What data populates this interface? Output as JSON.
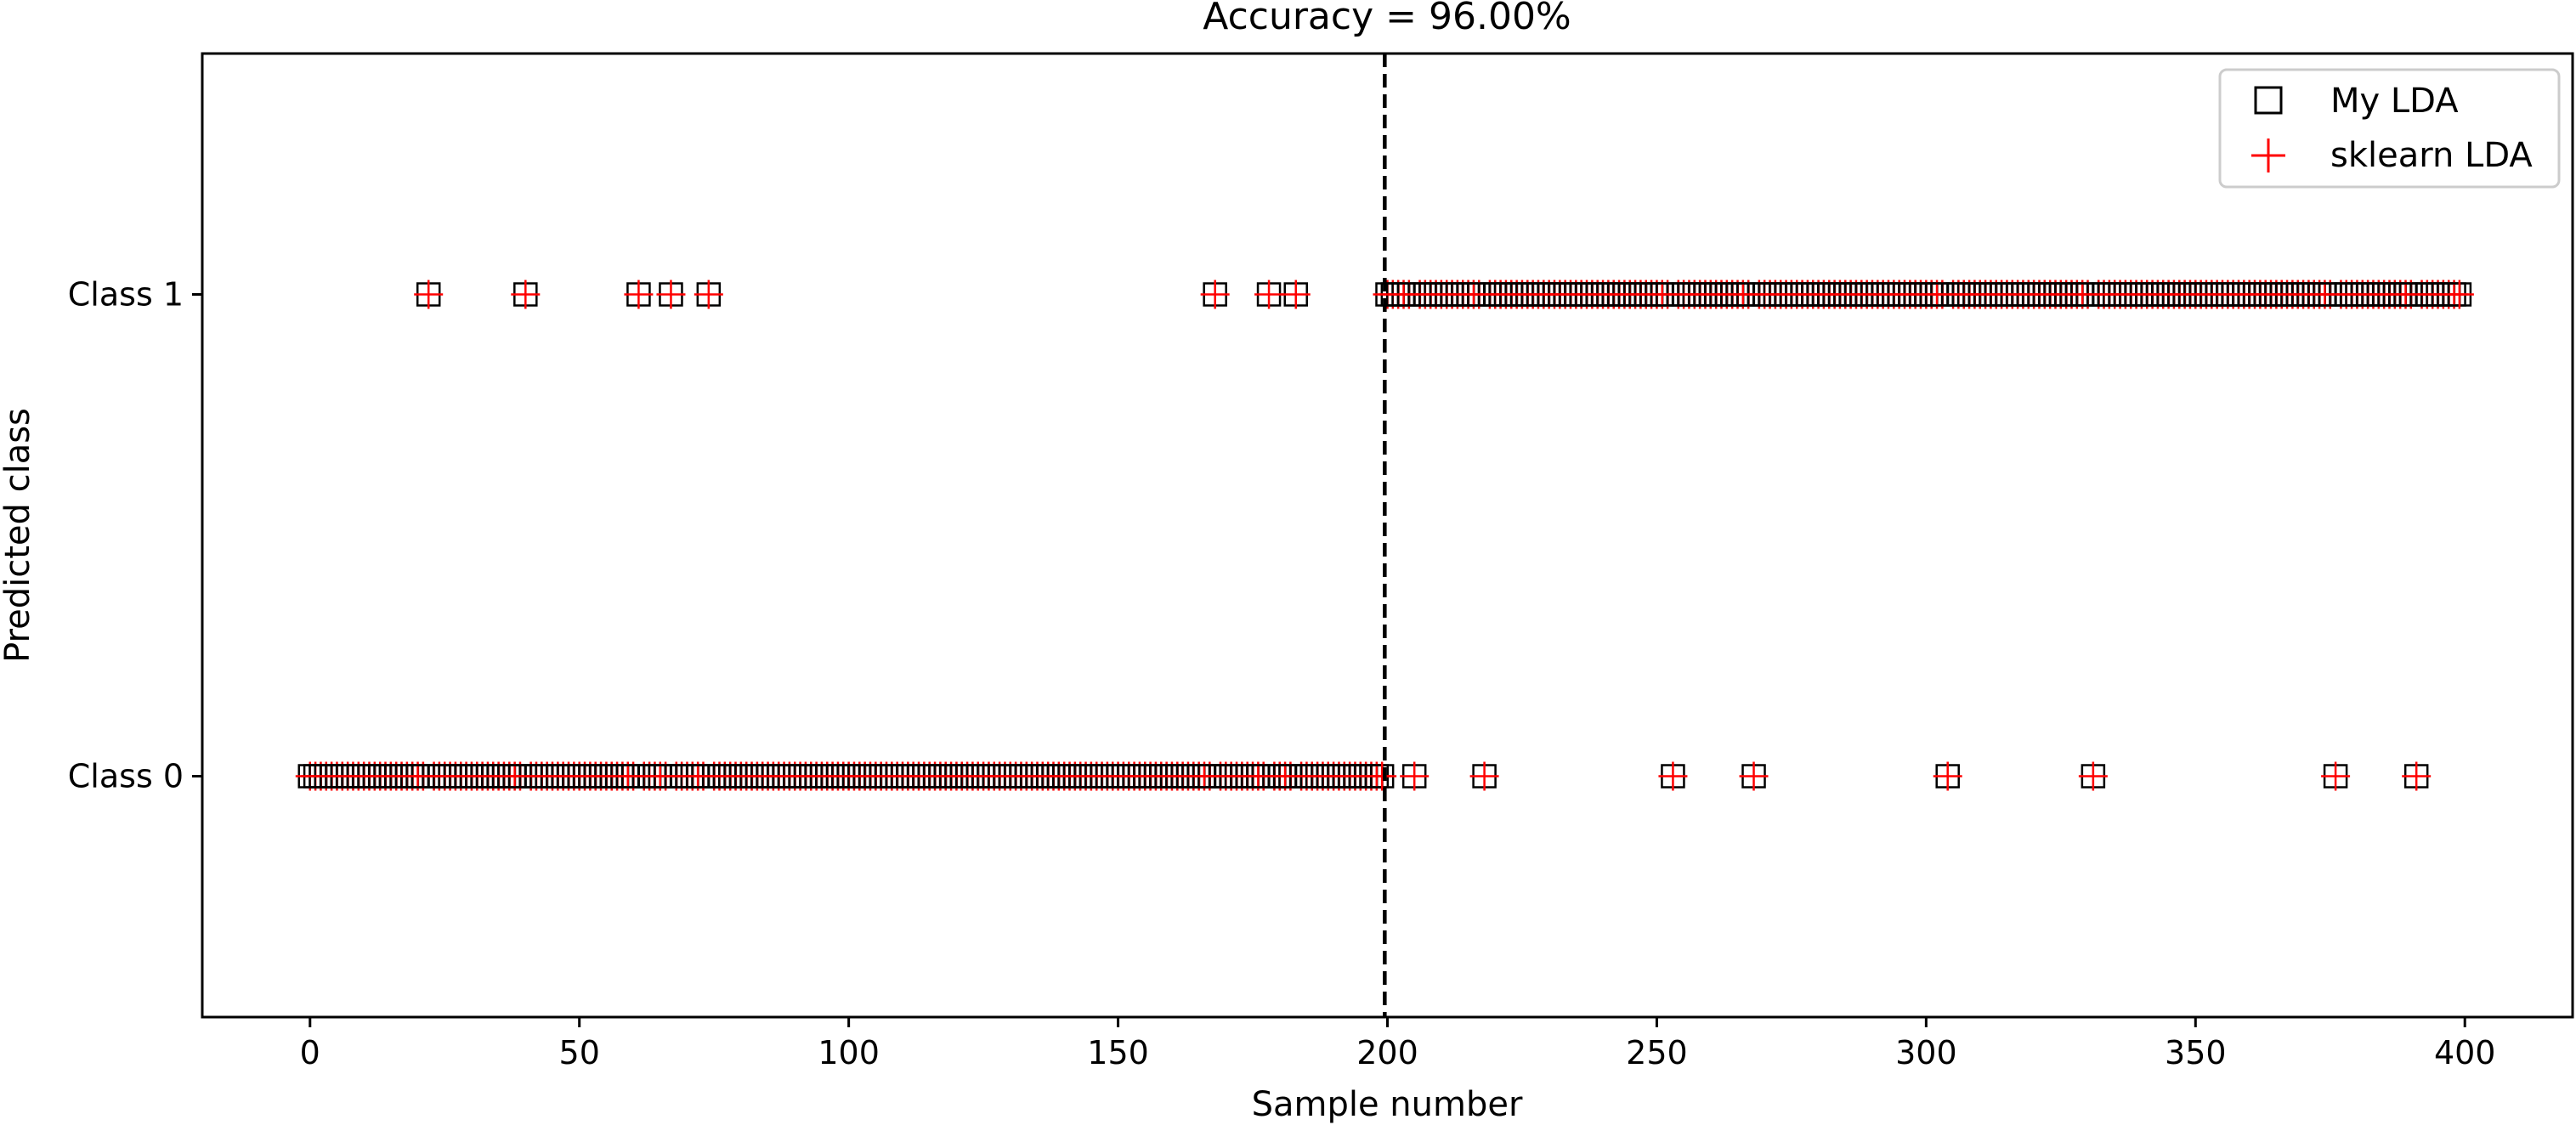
{
  "chart_data": {
    "type": "scatter",
    "title": "Accuracy = 96.00%",
    "xlabel": "Sample number",
    "ylabel": "Predicted class",
    "xlim": [
      -20,
      420
    ],
    "ylim": [
      -0.5,
      1.5
    ],
    "xticks": [
      0,
      50,
      100,
      150,
      200,
      250,
      300,
      350,
      400
    ],
    "yticks": [
      {
        "value": 0,
        "label": "Class 0"
      },
      {
        "value": 1,
        "label": "Class 1"
      }
    ],
    "grid": false,
    "legend_position": "top-right",
    "vline": {
      "x": 199.5,
      "style": "dashed",
      "color": "#000000"
    },
    "n_samples": 400,
    "true_class_boundary": 200,
    "misclassified": [
      22,
      40,
      61,
      67,
      74,
      168,
      178,
      183,
      205,
      218,
      253,
      268,
      304,
      331,
      376,
      391
    ],
    "series": [
      {
        "name": "My LDA",
        "marker": "square",
        "color": "#000000"
      },
      {
        "name": "sklearn LDA",
        "marker": "plus",
        "color": "#ff0000"
      }
    ]
  }
}
